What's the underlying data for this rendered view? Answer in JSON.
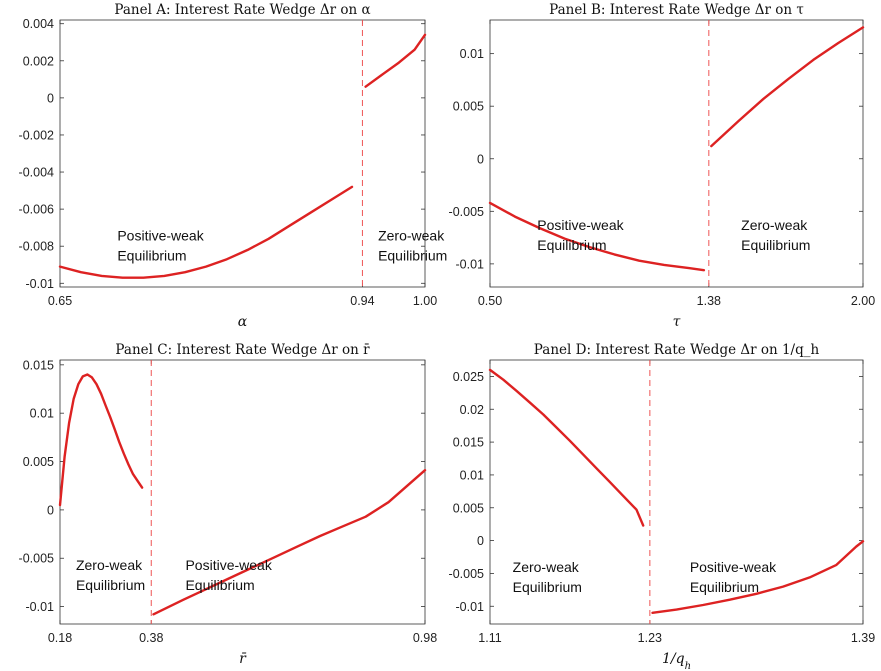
{
  "chart_data": [
    {
      "type": "line",
      "title": "Panel A: Interest Rate Wedge Δr on α",
      "xlabel": "α",
      "ylabel": "",
      "xlim": [
        0.65,
        1.0
      ],
      "ylim": [
        -0.0102,
        0.0042
      ],
      "xticks": [
        0.65,
        0.94,
        1.0
      ],
      "xtick_labels": [
        "0.65",
        "0.94",
        "1.00"
      ],
      "yticks": [
        -0.01,
        -0.008,
        -0.006,
        -0.004,
        -0.002,
        0,
        0.002,
        0.004
      ],
      "ytick_labels": [
        "-0.01",
        "-0.008",
        "-0.006",
        "-0.004",
        "-0.002",
        "0",
        "0.002",
        "0.004"
      ],
      "threshold": 0.94,
      "annotations": [
        {
          "lines": [
            "Positive-weak",
            "Equilibrium"
          ],
          "x": 0.705,
          "y": -0.0077
        },
        {
          "lines": [
            "Zero-weak",
            "Equilibrium"
          ],
          "x": 0.955,
          "y": -0.0077
        }
      ],
      "series": [
        {
          "x": [
            0.65,
            0.67,
            0.69,
            0.71,
            0.73,
            0.75,
            0.77,
            0.79,
            0.81,
            0.83,
            0.85,
            0.87,
            0.89,
            0.91,
            0.93
          ],
          "y": [
            -0.0091,
            -0.0094,
            -0.0096,
            -0.0097,
            -0.0097,
            -0.0096,
            -0.0094,
            -0.0091,
            -0.0087,
            -0.0082,
            -0.0076,
            -0.0069,
            -0.0062,
            -0.0055,
            -0.0048
          ]
        },
        {
          "x": [
            0.943,
            0.96,
            0.975,
            0.99,
            1.0
          ],
          "y": [
            0.0006,
            0.0013,
            0.0019,
            0.0026,
            0.0034
          ]
        }
      ]
    },
    {
      "type": "line",
      "title": "Panel B: Interest Rate Wedge Δr on τ",
      "xlabel": "τ",
      "ylabel": "",
      "xlim": [
        0.5,
        2.0
      ],
      "ylim": [
        -0.0122,
        0.0132
      ],
      "xticks": [
        0.5,
        1.38,
        2.0
      ],
      "xtick_labels": [
        "0.50",
        "1.38",
        "2.00"
      ],
      "yticks": [
        -0.01,
        -0.005,
        0,
        0.005,
        0.01
      ],
      "ytick_labels": [
        "-0.01",
        "-0.005",
        "0",
        "0.005",
        "0.01"
      ],
      "threshold": 1.38,
      "annotations": [
        {
          "lines": [
            "Positive-weak",
            "Equilibrium"
          ],
          "x": 0.69,
          "y": -0.0068
        },
        {
          "lines": [
            "Zero-weak",
            "Equilibrium"
          ],
          "x": 1.51,
          "y": -0.0068
        }
      ],
      "series": [
        {
          "x": [
            0.5,
            0.6,
            0.7,
            0.8,
            0.9,
            1.0,
            1.1,
            1.2,
            1.3,
            1.36
          ],
          "y": [
            -0.0042,
            -0.0055,
            -0.0066,
            -0.0076,
            -0.0084,
            -0.0091,
            -0.0097,
            -0.0101,
            -0.0104,
            -0.0106
          ]
        },
        {
          "x": [
            1.39,
            1.5,
            1.6,
            1.7,
            1.8,
            1.9,
            2.0
          ],
          "y": [
            0.0012,
            0.0036,
            0.0057,
            0.0076,
            0.0094,
            0.011,
            0.0125
          ]
        }
      ]
    },
    {
      "type": "line",
      "title": "Panel C: Interest Rate Wedge Δr on r̄",
      "xlabel": "r̄",
      "ylabel": "",
      "xlim": [
        0.18,
        0.98
      ],
      "ylim": [
        -0.0118,
        0.0155
      ],
      "xticks": [
        0.18,
        0.38,
        0.98
      ],
      "xtick_labels": [
        "0.18",
        "0.38",
        "0.98"
      ],
      "yticks": [
        -0.01,
        -0.005,
        0,
        0.005,
        0.01,
        0.015
      ],
      "ytick_labels": [
        "-0.01",
        "-0.005",
        "0",
        "0.005",
        "0.01",
        "0.015"
      ],
      "threshold": 0.38,
      "annotations": [
        {
          "lines": [
            "Zero-weak",
            "Equilibrium"
          ],
          "x": 0.215,
          "y": -0.0062
        },
        {
          "lines": [
            "Positive-weak",
            "Equilibrium"
          ],
          "x": 0.455,
          "y": -0.0062
        }
      ],
      "series": [
        {
          "x": [
            0.18,
            0.19,
            0.2,
            0.21,
            0.22,
            0.23,
            0.24,
            0.25,
            0.26,
            0.27,
            0.28,
            0.29,
            0.3,
            0.31,
            0.32,
            0.33,
            0.34,
            0.35,
            0.36
          ],
          "y": [
            0.0005,
            0.0055,
            0.009,
            0.0115,
            0.013,
            0.0138,
            0.014,
            0.0137,
            0.013,
            0.012,
            0.0108,
            0.0096,
            0.0083,
            0.007,
            0.0058,
            0.0047,
            0.0037,
            0.003,
            0.0023
          ]
        },
        {
          "x": [
            0.385,
            0.45,
            0.5,
            0.55,
            0.6,
            0.65,
            0.7,
            0.75,
            0.8,
            0.85,
            0.9,
            0.98
          ],
          "y": [
            -0.0108,
            -0.0093,
            -0.0082,
            -0.0071,
            -0.006,
            -0.0049,
            -0.0038,
            -0.0027,
            -0.0017,
            -0.0007,
            0.0008,
            0.0041
          ]
        }
      ]
    },
    {
      "type": "line",
      "title": "Panel D: Interest Rate Wedge Δr on 1/q_h",
      "xlabel": "1/q_h",
      "ylabel": "",
      "xlim": [
        1.11,
        1.39
      ],
      "ylim": [
        -0.0127,
        0.0275
      ],
      "xticks": [
        1.11,
        1.23,
        1.39
      ],
      "xtick_labels": [
        "1.11",
        "1.23",
        "1.39"
      ],
      "yticks": [
        -0.01,
        -0.005,
        0,
        0.005,
        0.01,
        0.015,
        0.02,
        0.025
      ],
      "ytick_labels": [
        "-0.01",
        "-0.005",
        "0",
        "0.005",
        "0.01",
        "0.015",
        "0.02",
        "0.025"
      ],
      "threshold": 1.23,
      "annotations": [
        {
          "lines": [
            "Zero-weak",
            "Equilibrium"
          ],
          "x": 1.127,
          "y": -0.0048
        },
        {
          "lines": [
            "Positive-weak",
            "Equilibrium"
          ],
          "x": 1.26,
          "y": -0.0048
        }
      ],
      "series": [
        {
          "x": [
            1.11,
            1.12,
            1.13,
            1.14,
            1.15,
            1.16,
            1.17,
            1.18,
            1.19,
            1.2,
            1.21,
            1.22,
            1.225
          ],
          "y": [
            0.026,
            0.0245,
            0.0228,
            0.021,
            0.0192,
            0.0172,
            0.0152,
            0.0131,
            0.011,
            0.0089,
            0.0068,
            0.0047,
            0.0023
          ]
        },
        {
          "x": [
            1.232,
            1.25,
            1.27,
            1.29,
            1.31,
            1.33,
            1.35,
            1.37,
            1.385,
            1.39
          ],
          "y": [
            -0.011,
            -0.0105,
            -0.0098,
            -0.009,
            -0.0081,
            -0.007,
            -0.0056,
            -0.0037,
            -0.0009,
            -0.0001
          ]
        }
      ]
    }
  ]
}
